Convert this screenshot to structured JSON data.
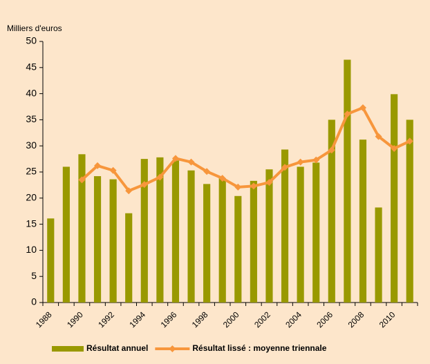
{
  "chart_data": {
    "type": "bar+line",
    "y_label": "Milliers d'euros",
    "categories": [
      "1988",
      null,
      "1990",
      null,
      "1992",
      null,
      "1994",
      null,
      "1996",
      null,
      "1998",
      null,
      "2000",
      null,
      "2002",
      null,
      "2004",
      null,
      "2006",
      null,
      "2008",
      null,
      "2010",
      null
    ],
    "series": [
      {
        "name": "Résultat annuel",
        "type": "bar",
        "color": "#999900",
        "values": [
          16.1,
          26,
          28.4,
          24.2,
          23.6,
          17.1,
          27.5,
          27.8,
          27.2,
          25.3,
          22.7,
          23.8,
          20.4,
          23.3,
          25.5,
          29.3,
          26,
          26.8,
          35,
          46.5,
          31.2,
          18.2,
          39.9,
          35
        ]
      },
      {
        "name": "Résultat lissé : moyenne triennale",
        "type": "line",
        "color": "#f7963c",
        "values": [
          null,
          null,
          23.5,
          26.2,
          25.3,
          21.4,
          22.6,
          24,
          27.6,
          26.9,
          25.1,
          23.8,
          22.1,
          22.3,
          23,
          25.9,
          26.9,
          27.3,
          29.2,
          36.1,
          37.3,
          31.8,
          29.5,
          30.9
        ]
      }
    ],
    "ylim": [
      0,
      50
    ],
    "yticks": [
      0,
      5,
      10,
      15,
      20,
      25,
      30,
      35,
      40,
      45,
      50
    ],
    "grid": false,
    "legend": "bottom"
  }
}
